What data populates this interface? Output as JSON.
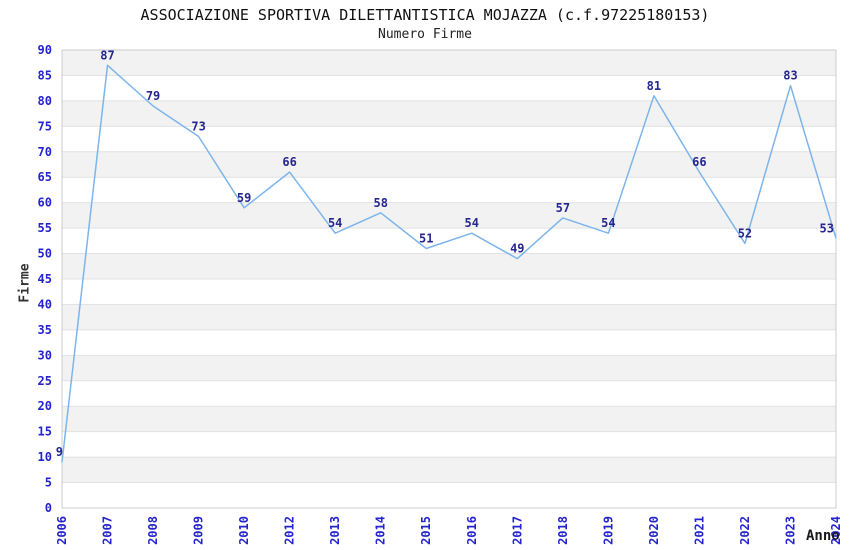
{
  "chart_data": {
    "type": "line",
    "title": "ASSOCIAZIONE SPORTIVA DILETTANTISTICA MOJAZZA (c.f.97225180153)",
    "subtitle": "Numero Firme",
    "xlabel": "Anno",
    "ylabel": "Firme",
    "categories": [
      "2006",
      "2007",
      "2008",
      "2009",
      "2010",
      "2012",
      "2013",
      "2014",
      "2015",
      "2016",
      "2017",
      "2018",
      "2019",
      "2020",
      "2021",
      "2022",
      "2023",
      "2024"
    ],
    "values": [
      9,
      87,
      79,
      73,
      59,
      66,
      54,
      58,
      51,
      54,
      49,
      57,
      54,
      81,
      66,
      52,
      83,
      53
    ],
    "ylim": [
      0,
      90
    ],
    "ytick_step": 5,
    "grid": true,
    "alternating_bands": true,
    "legend": "none",
    "data_labels": true,
    "colors": {
      "line": "#7cb5ec",
      "data_label": "#26268f",
      "tick_label": "#2424cd",
      "axis_title": "#333333",
      "title": "#111111",
      "band": "#f2f2f2",
      "gridline": "#e2e2e2",
      "plot_border": "#cccccc",
      "background": "#ffffff"
    }
  }
}
